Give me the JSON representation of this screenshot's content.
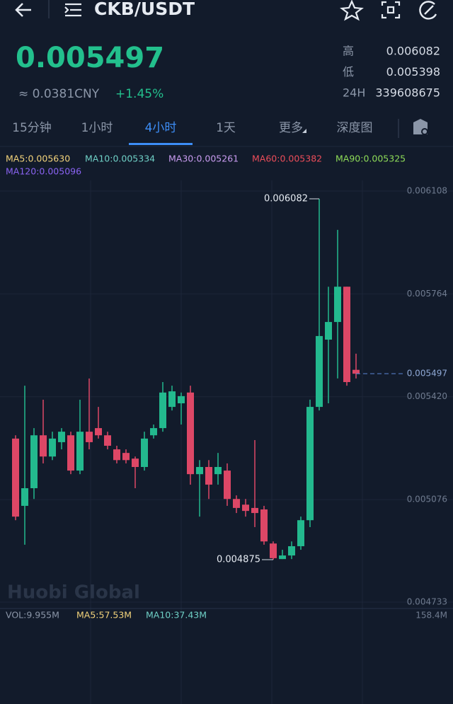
{
  "header": {
    "title": "CKB/USDT"
  },
  "ticker": {
    "price": "0.005497",
    "cny": "≈ 0.0381CNY",
    "change": "+1.45%",
    "stats": [
      {
        "label": "高",
        "value": "0.006082"
      },
      {
        "label": "低",
        "value": "0.005398"
      },
      {
        "label": "24H",
        "value": "339608675"
      }
    ]
  },
  "tabs": [
    "15分钟",
    "1小时",
    "4小时",
    "1天",
    "更多",
    "深度图"
  ],
  "active_tab": 2,
  "indicators": [
    {
      "text": "MA5:0.005630",
      "color": "#f3d37b"
    },
    {
      "text": "MA10:0.005334",
      "color": "#6fd0c6"
    },
    {
      "text": "MA30:0.005261",
      "color": "#c99cf0"
    },
    {
      "text": "MA60:0.005382",
      "color": "#ec4d5a"
    },
    {
      "text": "MA90:0.005325",
      "color": "#8edc58"
    },
    {
      "text": "MA120:0.005096",
      "color": "#8a63f2"
    }
  ],
  "chart_data": {
    "type": "candlestick",
    "open": [
      0.00528,
      0.005055,
      0.005114,
      0.005291,
      0.00522,
      0.005268,
      0.005291,
      0.005173,
      0.005303,
      0.005315,
      0.005291,
      0.005244,
      0.005232,
      0.005213,
      0.005185,
      0.005291,
      0.005315,
      0.005386,
      0.005398,
      0.005434,
      0.005161,
      0.005185,
      0.005161,
      0.005173,
      0.005078,
      0.005059,
      0.005048,
      0.005043,
      0.004929,
      0.004877,
      0.004889,
      0.00492,
      0.005007,
      0.005386,
      0.005611,
      0.00567,
      0.005788,
      0.00551
    ],
    "close": [
      0.005019,
      0.005114,
      0.005291,
      0.00522,
      0.00528,
      0.005303,
      0.005173,
      0.005303,
      0.005268,
      0.005291,
      0.005256,
      0.005208,
      0.005208,
      0.005185,
      0.00528,
      0.005315,
      0.005434,
      0.005438,
      0.005422,
      0.005161,
      0.005185,
      0.005126,
      0.005185,
      0.005078,
      0.005048,
      0.005038,
      0.005031,
      0.004936,
      0.00488,
      0.004889,
      0.00492,
      0.005007,
      0.005386,
      0.005623,
      0.00567,
      0.005788,
      0.005469,
      0.005497
    ],
    "high": [
      0.005291,
      0.005457,
      0.005315,
      0.00541,
      0.005303,
      0.005315,
      0.005303,
      0.00541,
      0.005481,
      0.005386,
      0.005303,
      0.005256,
      0.005244,
      0.00522,
      0.005303,
      0.005327,
      0.005469,
      0.005457,
      0.005434,
      0.005457,
      0.005208,
      0.005208,
      0.005232,
      0.005197,
      0.00509,
      0.005078,
      0.005275,
      0.005055,
      0.004936,
      0.004908,
      0.004936,
      0.005019,
      0.00541,
      0.006082,
      0.005788,
      0.005978,
      0.005788,
      0.005564
    ],
    "low": [
      0.005007,
      0.004925,
      0.005078,
      0.005197,
      0.005208,
      0.005244,
      0.005161,
      0.005161,
      0.005244,
      0.00528,
      0.005244,
      0.005197,
      0.005197,
      0.005114,
      0.005173,
      0.00528,
      0.005303,
      0.005374,
      0.005327,
      0.005126,
      0.005019,
      0.005078,
      0.005126,
      0.005055,
      0.005031,
      0.005019,
      0.004984,
      0.004925,
      0.004875,
      0.004877,
      0.004877,
      0.004908,
      0.004984,
      0.005374,
      0.005398,
      0.005481,
      0.005457,
      0.005481
    ],
    "up_color": "#23b98e",
    "down_color": "#dd4766",
    "ylim": [
      0.004733,
      0.006108
    ],
    "yticks": [
      0.004733,
      0.005076,
      {
        "value": 0.00542,
        "label": "0.005420"
      },
      0.005764,
      0.006108
    ],
    "max_label": 0.006082,
    "min_label": 0.004875,
    "last_price": 0.005497,
    "watermark": "Huobi Global"
  },
  "volume": {
    "labels": [
      {
        "text": "VOL:9.955M",
        "color": "#8b96a8"
      },
      {
        "text": "MA5:57.53M",
        "color": "#f3d37b"
      },
      {
        "text": "MA10:37.43M",
        "color": "#6fd0c6"
      }
    ],
    "max_label": "158.4M"
  }
}
